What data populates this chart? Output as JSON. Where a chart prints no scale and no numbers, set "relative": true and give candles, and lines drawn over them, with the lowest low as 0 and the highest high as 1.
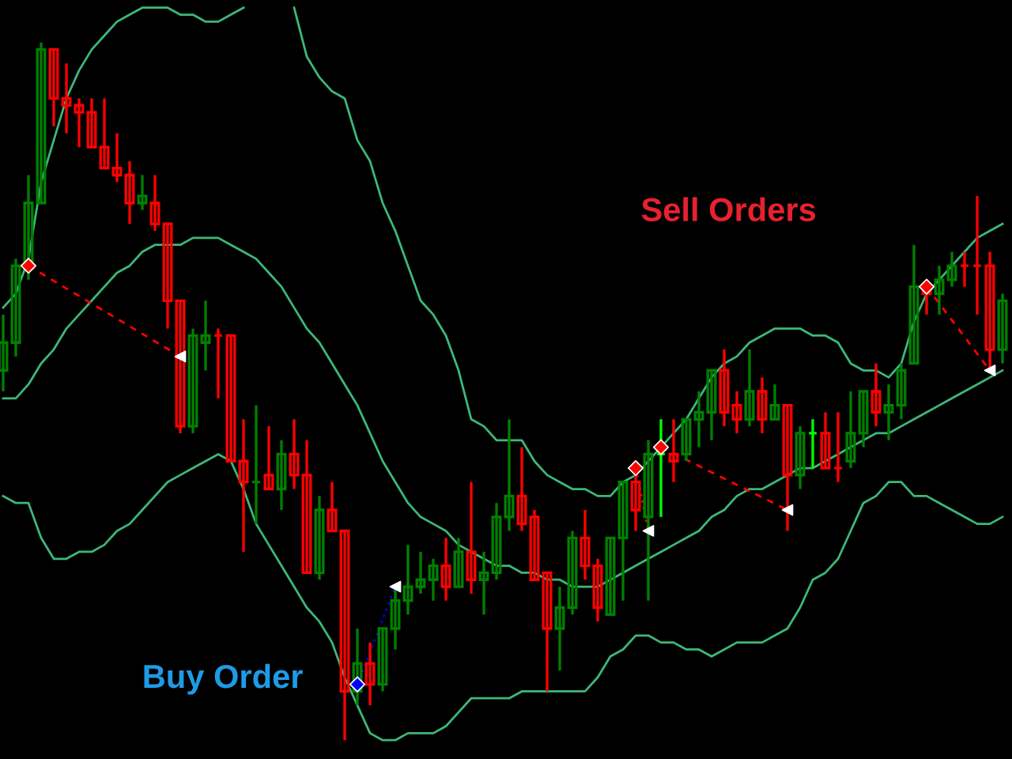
{
  "chart_data": {
    "type": "candlestick",
    "relative": true,
    "annotations": [
      "Sell Orders",
      "Buy Order"
    ],
    "categories": [
      null,
      null,
      null,
      null,
      null,
      null,
      null,
      null,
      null,
      null,
      null,
      null,
      null,
      null,
      null,
      null,
      null,
      null,
      null,
      null,
      null,
      null,
      null,
      null,
      null,
      null,
      null,
      null,
      null,
      null,
      null,
      null,
      null,
      null,
      null,
      null,
      null,
      null,
      null,
      null,
      null,
      null,
      null,
      null,
      null,
      null,
      null,
      null,
      null,
      null,
      null,
      null,
      null,
      null,
      null,
      null,
      null,
      null,
      null,
      null,
      null,
      null,
      null,
      null,
      null,
      null,
      null,
      null,
      null,
      null,
      null,
      null,
      null,
      null,
      null,
      null,
      null,
      null,
      null,
      null
    ],
    "ohlc": [
      [
        0.53,
        0.61,
        0.5,
        0.57
      ],
      [
        0.57,
        0.69,
        0.55,
        0.68
      ],
      [
        0.68,
        0.81,
        0.66,
        0.77
      ],
      [
        0.77,
        1.0,
        0.77,
        0.99
      ],
      [
        0.99,
        0.99,
        0.88,
        0.92
      ],
      [
        0.92,
        0.97,
        0.87,
        0.91
      ],
      [
        0.91,
        0.92,
        0.85,
        0.9
      ],
      [
        0.9,
        0.92,
        0.85,
        0.85
      ],
      [
        0.85,
        0.92,
        0.82,
        0.82
      ],
      [
        0.82,
        0.87,
        0.8,
        0.81
      ],
      [
        0.81,
        0.83,
        0.74,
        0.77
      ],
      [
        0.77,
        0.81,
        0.76,
        0.78
      ],
      [
        0.77,
        0.81,
        0.73,
        0.74
      ],
      [
        0.74,
        0.74,
        0.59,
        0.63
      ],
      [
        0.63,
        0.63,
        0.44,
        0.45
      ],
      [
        0.45,
        0.59,
        0.44,
        0.58
      ],
      [
        0.57,
        0.63,
        0.53,
        0.58
      ],
      [
        0.58,
        0.59,
        0.49,
        0.58
      ],
      [
        0.58,
        0.58,
        0.4,
        0.4
      ],
      [
        0.4,
        0.46,
        0.27,
        0.37
      ],
      [
        0.37,
        0.48,
        0.31,
        0.37
      ],
      [
        0.38,
        0.45,
        0.36,
        0.36
      ],
      [
        0.36,
        0.43,
        0.33,
        0.41
      ],
      [
        0.41,
        0.46,
        0.36,
        0.38
      ],
      [
        0.38,
        0.43,
        0.24,
        0.24
      ],
      [
        0.24,
        0.35,
        0.23,
        0.33
      ],
      [
        0.33,
        0.37,
        0.3,
        0.3
      ],
      [
        0.3,
        0.3,
        0.0,
        0.07
      ],
      [
        0.07,
        0.16,
        0.05,
        0.11
      ],
      [
        0.11,
        0.14,
        0.05,
        0.08
      ],
      [
        0.08,
        0.16,
        0.07,
        0.16
      ],
      [
        0.16,
        0.22,
        0.13,
        0.2
      ],
      [
        0.2,
        0.28,
        0.18,
        0.22
      ],
      [
        0.22,
        0.27,
        0.21,
        0.23
      ],
      [
        0.23,
        0.26,
        0.2,
        0.25
      ],
      [
        0.25,
        0.29,
        0.2,
        0.22
      ],
      [
        0.22,
        0.29,
        0.22,
        0.27
      ],
      [
        0.27,
        0.37,
        0.21,
        0.23
      ],
      [
        0.23,
        0.27,
        0.18,
        0.24
      ],
      [
        0.24,
        0.34,
        0.23,
        0.32
      ],
      [
        0.32,
        0.46,
        0.3,
        0.35
      ],
      [
        0.35,
        0.42,
        0.3,
        0.31
      ],
      [
        0.32,
        0.33,
        0.23,
        0.23
      ],
      [
        0.24,
        0.24,
        0.07,
        0.16
      ],
      [
        0.16,
        0.22,
        0.1,
        0.19
      ],
      [
        0.19,
        0.3,
        0.18,
        0.29
      ],
      [
        0.29,
        0.33,
        0.23,
        0.25
      ],
      [
        0.25,
        0.26,
        0.17,
        0.19
      ],
      [
        0.18,
        0.29,
        0.18,
        0.29
      ],
      [
        0.29,
        0.37,
        0.2,
        0.37
      ],
      [
        0.37,
        0.39,
        0.3,
        0.33
      ],
      [
        0.32,
        0.43,
        0.2,
        0.41
      ],
      [
        0.41,
        0.46,
        0.32,
        0.41
      ],
      [
        0.41,
        0.46,
        0.37,
        0.4
      ],
      [
        0.41,
        0.46,
        0.4,
        0.46
      ],
      [
        0.46,
        0.5,
        0.42,
        0.47
      ],
      [
        0.47,
        0.53,
        0.43,
        0.53
      ],
      [
        0.53,
        0.56,
        0.45,
        0.47
      ],
      [
        0.48,
        0.5,
        0.44,
        0.46
      ],
      [
        0.46,
        0.56,
        0.45,
        0.5
      ],
      [
        0.5,
        0.52,
        0.44,
        0.46
      ],
      [
        0.46,
        0.51,
        0.46,
        0.48
      ],
      [
        0.48,
        0.48,
        0.3,
        0.38
      ],
      [
        0.38,
        0.45,
        0.36,
        0.44
      ],
      [
        0.44,
        0.46,
        0.39,
        0.44
      ],
      [
        0.44,
        0.47,
        0.39,
        0.39
      ],
      [
        0.39,
        0.47,
        0.37,
        0.39
      ],
      [
        0.4,
        0.5,
        0.39,
        0.44
      ],
      [
        0.44,
        0.5,
        0.42,
        0.5
      ],
      [
        0.5,
        0.54,
        0.45,
        0.47
      ],
      [
        0.47,
        0.51,
        0.43,
        0.48
      ],
      [
        0.48,
        0.54,
        0.46,
        0.53
      ],
      [
        0.54,
        0.71,
        0.54,
        0.65
      ],
      [
        0.65,
        0.66,
        0.61,
        0.64
      ],
      [
        0.64,
        0.68,
        0.61,
        0.66
      ],
      [
        0.66,
        0.7,
        0.65,
        0.68
      ],
      [
        0.68,
        0.7,
        0.65,
        0.68
      ],
      [
        0.68,
        0.78,
        0.61,
        0.68
      ],
      [
        0.68,
        0.7,
        0.53,
        0.56
      ],
      [
        0.56,
        0.64,
        0.54,
        0.63
      ]
    ],
    "colors": [
      "#008000",
      "#008000",
      "#008000",
      "#008000",
      "#ff0000",
      "#ff0000",
      "#ff0000",
      "#ff0000",
      "#ff0000",
      "#ff0000",
      "#ff0000",
      "#008000",
      "#ff0000",
      "#ff0000",
      "#ff0000",
      "#008000",
      "#008000",
      "#ff0000",
      "#ff0000",
      "#ff0000",
      "#008000",
      "#ff0000",
      "#008000",
      "#ff0000",
      "#ff0000",
      "#008000",
      "#ff0000",
      "#ff0000",
      "#008000",
      "#ff0000",
      "#008000",
      "#008000",
      "#008000",
      "#008000",
      "#008000",
      "#ff0000",
      "#008000",
      "#ff0000",
      "#008000",
      "#008000",
      "#008000",
      "#ff0000",
      "#ff0000",
      "#ff0000",
      "#008000",
      "#008000",
      "#ff0000",
      "#ff0000",
      "#008000",
      "#008000",
      "#ff0000",
      "#008000",
      "#00ff00",
      "#ff0000",
      "#008000",
      "#008000",
      "#008000",
      "#ff0000",
      "#ff0000",
      "#008000",
      "#ff0000",
      "#008000",
      "#ff0000",
      "#008000",
      "#00ff00",
      "#ff0000",
      "#ff0000",
      "#008000",
      "#008000",
      "#ff0000",
      "#008000",
      "#008000",
      "#008000",
      "#ff0000",
      "#008000",
      "#008000",
      "#ff0000",
      "#ff0000",
      "#ff0000",
      "#008000"
    ],
    "series": [
      {
        "type": "line",
        "color": "#3cb878",
        "line_style": "solid",
        "values": [
          0.62,
          0.64,
          0.69,
          0.8,
          0.86,
          0.92,
          0.96,
          0.99,
          1.01,
          1.03,
          1.04,
          1.05,
          1.05,
          1.05,
          1.04,
          1.04,
          1.03,
          1.03,
          1.04,
          1.05,
          null,
          null,
          null,
          1.05,
          0.98,
          0.95,
          0.93,
          0.92,
          0.86,
          0.83,
          0.77,
          0.73,
          0.68,
          0.63,
          0.61,
          0.58,
          0.53,
          0.46,
          0.45,
          0.43,
          0.43,
          0.43,
          0.4,
          0.38,
          0.37,
          0.36,
          0.36,
          0.35,
          0.35,
          0.37,
          0.38,
          0.4,
          0.42,
          0.44,
          0.46,
          0.49,
          0.52,
          0.54,
          0.55,
          0.57,
          0.58,
          0.59,
          0.59,
          0.59,
          0.58,
          0.58,
          0.57,
          0.54,
          0.53,
          0.53,
          0.52,
          0.54,
          0.6,
          0.64,
          0.66,
          0.68,
          0.7,
          0.72,
          0.73,
          0.74
        ]
      },
      {
        "type": "line",
        "color": "#3cb878",
        "line_style": "solid",
        "values": [
          0.49,
          0.49,
          0.51,
          0.54,
          0.56,
          0.59,
          0.61,
          0.63,
          0.65,
          0.67,
          0.68,
          0.7,
          0.71,
          0.71,
          0.71,
          0.72,
          0.72,
          0.72,
          0.71,
          0.7,
          0.69,
          0.67,
          0.65,
          0.62,
          0.59,
          0.57,
          0.54,
          0.51,
          0.48,
          0.44,
          0.4,
          0.37,
          0.34,
          0.32,
          0.31,
          0.3,
          0.28,
          0.27,
          0.26,
          0.25,
          0.25,
          0.24,
          0.24,
          0.23,
          0.23,
          0.22,
          0.22,
          0.22,
          0.23,
          0.24,
          0.25,
          0.26,
          0.27,
          0.28,
          0.29,
          0.3,
          0.32,
          0.33,
          0.35,
          0.36,
          0.36,
          0.37,
          0.38,
          0.39,
          0.39,
          0.4,
          0.41,
          0.42,
          0.43,
          0.44,
          0.44,
          0.45,
          0.46,
          0.47,
          0.48,
          0.49,
          0.5,
          0.51,
          0.52,
          0.53
        ]
      },
      {
        "type": "line",
        "color": "#3cb878",
        "line_style": "solid",
        "values": [
          0.35,
          0.34,
          0.34,
          0.29,
          0.26,
          0.26,
          0.27,
          0.27,
          0.28,
          0.3,
          0.31,
          0.33,
          0.35,
          0.37,
          0.38,
          0.39,
          0.4,
          0.41,
          0.4,
          0.36,
          0.31,
          0.28,
          0.25,
          0.22,
          0.19,
          0.17,
          0.14,
          0.09,
          0.05,
          0.01,
          0.0,
          0.0,
          0.01,
          0.01,
          0.01,
          0.02,
          0.04,
          0.06,
          0.06,
          0.06,
          0.06,
          0.07,
          0.07,
          0.07,
          0.07,
          0.07,
          0.07,
          0.09,
          0.12,
          0.13,
          0.15,
          0.15,
          0.14,
          0.14,
          0.13,
          0.13,
          0.12,
          0.13,
          0.14,
          0.14,
          0.14,
          0.15,
          0.16,
          0.19,
          0.23,
          0.24,
          0.26,
          0.3,
          0.34,
          0.35,
          0.37,
          0.37,
          0.35,
          0.35,
          0.34,
          0.33,
          0.32,
          0.31,
          0.31,
          0.32
        ]
      },
      {
        "type": "line",
        "color": "#ff0000",
        "line_style": "dashed",
        "values": [
          null,
          null,
          0.68,
          null,
          null,
          null,
          null,
          null,
          null,
          null,
          null,
          null,
          null,
          null,
          0.55,
          null,
          null,
          null,
          null,
          null,
          null,
          null,
          null,
          null,
          null,
          null,
          null,
          null,
          null,
          null,
          null,
          null,
          null,
          null,
          null,
          null,
          null,
          null,
          null,
          null,
          null,
          null,
          null,
          null,
          null,
          null,
          null,
          null,
          null,
          null,
          null,
          null,
          null,
          null,
          null,
          null,
          null,
          null,
          null,
          null,
          null,
          null,
          null,
          null,
          null,
          null,
          null,
          null,
          null,
          null,
          null,
          null,
          null,
          null,
          null,
          null,
          null,
          null,
          null,
          null
        ]
      },
      {
        "type": "line",
        "color": "#0000ff",
        "line_style": "dotted",
        "values": [
          null,
          null,
          null,
          null,
          null,
          null,
          null,
          null,
          null,
          null,
          null,
          null,
          null,
          null,
          null,
          null,
          null,
          null,
          null,
          null,
          null,
          null,
          null,
          null,
          null,
          null,
          null,
          null,
          0.08,
          null,
          null,
          0.22,
          null,
          null,
          null,
          null,
          null,
          null,
          null,
          null,
          null,
          null,
          null,
          null,
          null,
          null,
          null,
          null,
          null,
          null,
          null,
          null,
          null,
          null,
          null,
          null,
          null,
          null,
          null,
          null,
          null,
          null,
          null,
          null,
          null,
          null,
          null,
          null,
          null,
          null,
          null,
          null,
          null,
          null,
          null,
          null,
          null,
          null,
          null,
          null
        ]
      },
      {
        "type": "line",
        "color": "#ff0000",
        "line_style": "dotted",
        "values": [
          null,
          null,
          null,
          null,
          null,
          null,
          null,
          null,
          null,
          null,
          null,
          null,
          null,
          null,
          null,
          null,
          null,
          null,
          null,
          null,
          null,
          null,
          null,
          null,
          null,
          null,
          null,
          null,
          null,
          null,
          null,
          null,
          null,
          null,
          null,
          null,
          null,
          null,
          null,
          null,
          null,
          null,
          null,
          null,
          null,
          null,
          null,
          null,
          null,
          null,
          0.39,
          0.3,
          null,
          null,
          null,
          null,
          null,
          null,
          null,
          null,
          null,
          null,
          null,
          null,
          null,
          null,
          null,
          null,
          null,
          null,
          null,
          null,
          null,
          null,
          null,
          null,
          null,
          null,
          null,
          null
        ]
      },
      {
        "type": "line",
        "color": "#ff0000",
        "line_style": "dashed",
        "values": [
          null,
          null,
          null,
          null,
          null,
          null,
          null,
          null,
          null,
          null,
          null,
          null,
          null,
          null,
          null,
          null,
          null,
          null,
          null,
          null,
          null,
          null,
          null,
          null,
          null,
          null,
          null,
          null,
          null,
          null,
          null,
          null,
          null,
          null,
          null,
          null,
          null,
          null,
          null,
          null,
          null,
          null,
          null,
          null,
          null,
          null,
          null,
          null,
          null,
          null,
          null,
          null,
          0.42,
          null,
          null,
          null,
          null,
          null,
          null,
          null,
          null,
          null,
          0.33,
          null,
          null,
          null,
          null,
          null,
          null,
          null,
          null,
          null,
          null,
          null,
          null,
          null,
          null,
          null,
          null,
          null
        ]
      },
      {
        "type": "line",
        "color": "#ff0000",
        "line_style": "dashed",
        "values": [
          null,
          null,
          null,
          null,
          null,
          null,
          null,
          null,
          null,
          null,
          null,
          null,
          null,
          null,
          null,
          null,
          null,
          null,
          null,
          null,
          null,
          null,
          null,
          null,
          null,
          null,
          null,
          null,
          null,
          null,
          null,
          null,
          null,
          null,
          null,
          null,
          null,
          null,
          null,
          null,
          null,
          null,
          null,
          null,
          null,
          null,
          null,
          null,
          null,
          null,
          null,
          null,
          null,
          null,
          null,
          null,
          null,
          null,
          null,
          null,
          null,
          null,
          null,
          null,
          null,
          null,
          null,
          null,
          null,
          null,
          null,
          null,
          null,
          0.65,
          null,
          null,
          null,
          null,
          0.53,
          null
        ]
      },
      {
        "type": "scatter",
        "color": "#ff0000",
        "marker": "diamond",
        "values": [
          null,
          null,
          0.68,
          null,
          null,
          null,
          null,
          null,
          null,
          null,
          null,
          null,
          null,
          null,
          null,
          null,
          null,
          null,
          null,
          null,
          null,
          null,
          null,
          null,
          null,
          null,
          null,
          null,
          null,
          null,
          null,
          null,
          null,
          null,
          null,
          null,
          null,
          null,
          null,
          null,
          null,
          null,
          null,
          null,
          null,
          null,
          null,
          null,
          null,
          null,
          0.39,
          null,
          0.42,
          null,
          null,
          null,
          null,
          null,
          null,
          null,
          null,
          null,
          null,
          null,
          null,
          null,
          null,
          null,
          null,
          null,
          null,
          null,
          null,
          0.65,
          null,
          null,
          null,
          null,
          null,
          null
        ]
      },
      {
        "type": "scatter",
        "color": "#0000ff",
        "marker": "diamond",
        "values": [
          null,
          null,
          null,
          null,
          null,
          null,
          null,
          null,
          null,
          null,
          null,
          null,
          null,
          null,
          null,
          null,
          null,
          null,
          null,
          null,
          null,
          null,
          null,
          null,
          null,
          null,
          null,
          null,
          0.08,
          null,
          null,
          null,
          null,
          null,
          null,
          null,
          null,
          null,
          null,
          null,
          null,
          null,
          null,
          null,
          null,
          null,
          null,
          null,
          null,
          null,
          null,
          null,
          null,
          null,
          null,
          null,
          null,
          null,
          null,
          null,
          null,
          null,
          null,
          null,
          null,
          null,
          null,
          null,
          null,
          null,
          null,
          null,
          null,
          null,
          null,
          null,
          null,
          null,
          null,
          null
        ]
      },
      {
        "type": "scatter",
        "color": "#ffffff",
        "marker": "triangle",
        "values": [
          null,
          null,
          null,
          null,
          null,
          null,
          null,
          null,
          null,
          null,
          null,
          null,
          null,
          null,
          0.55,
          null,
          null,
          null,
          null,
          null,
          null,
          null,
          null,
          null,
          null,
          null,
          null,
          null,
          null,
          null,
          null,
          0.22,
          null,
          null,
          null,
          null,
          null,
          null,
          null,
          null,
          null,
          null,
          null,
          null,
          null,
          null,
          null,
          null,
          null,
          null,
          null,
          0.3,
          null,
          null,
          null,
          null,
          null,
          null,
          null,
          null,
          null,
          null,
          0.33,
          null,
          null,
          null,
          null,
          null,
          null,
          null,
          null,
          null,
          null,
          null,
          null,
          null,
          null,
          null,
          0.53,
          null
        ]
      }
    ]
  }
}
